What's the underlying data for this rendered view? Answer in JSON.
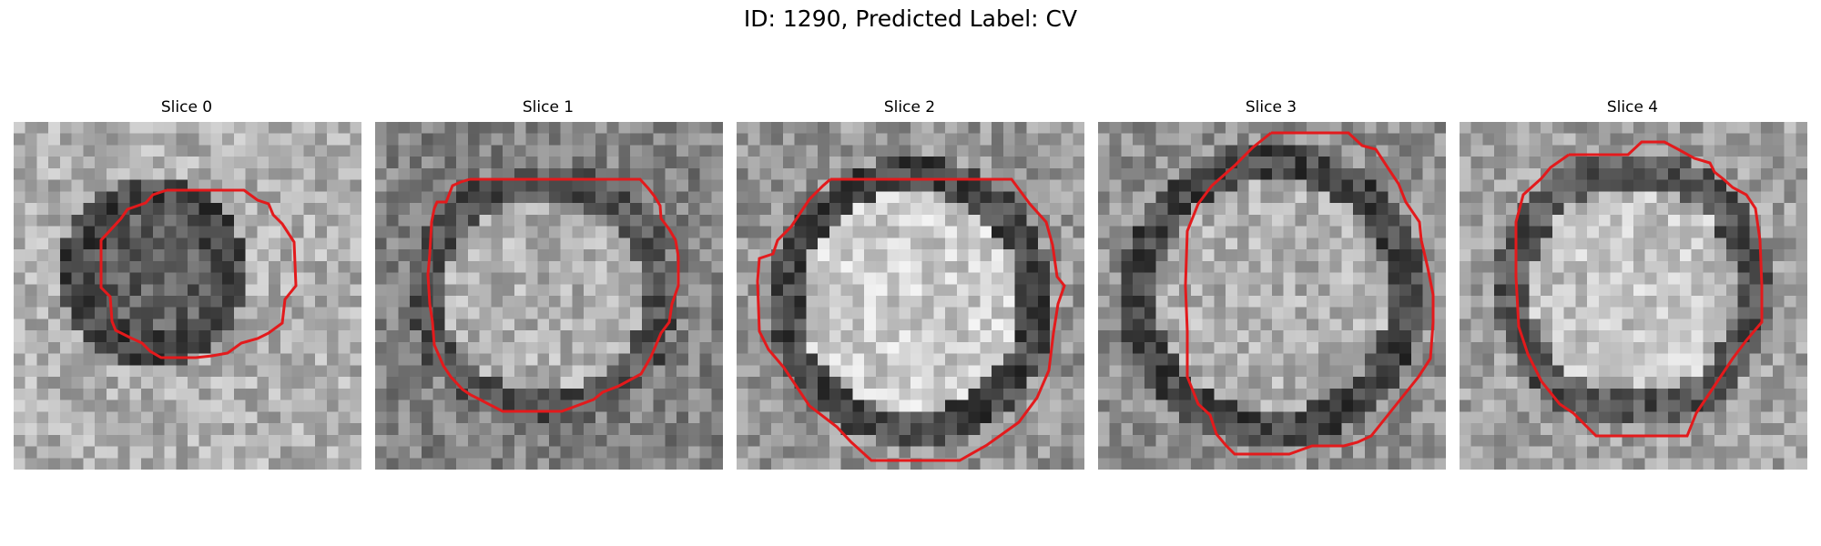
{
  "figure": {
    "title": "ID: 1290, Predicted Label: CV"
  },
  "panels": [
    {
      "label": "Slice 0"
    },
    {
      "label": "Slice 1"
    },
    {
      "label": "Slice 2"
    },
    {
      "label": "Slice 3"
    },
    {
      "label": "Slice 4"
    }
  ],
  "colors": {
    "contour": "#e31a1c",
    "background": "#ffffff"
  }
}
